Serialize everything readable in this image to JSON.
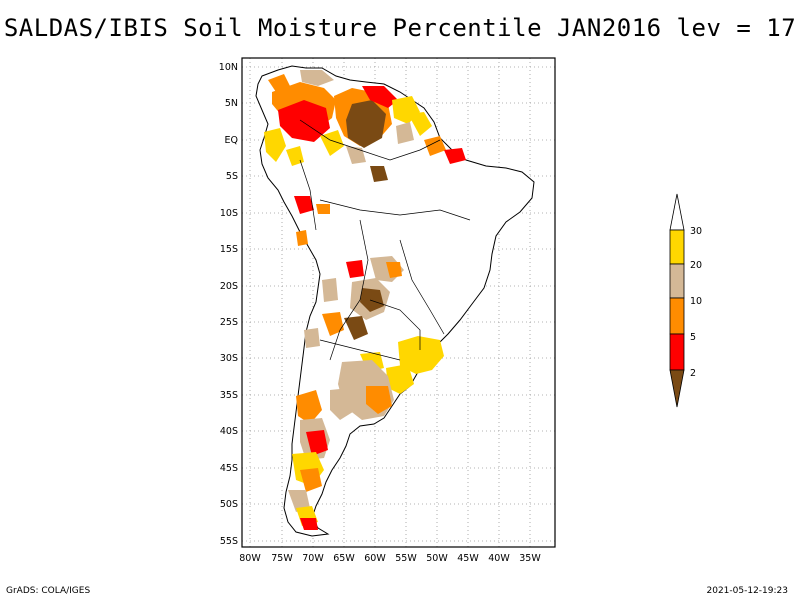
{
  "title": "SALDAS/IBIS Soil Moisture Percentile JAN2016 lev = 17",
  "axes": {
    "lat_labels": [
      "10N",
      "5N",
      "EQ",
      "5S",
      "10S",
      "15S",
      "20S",
      "25S",
      "30S",
      "35S",
      "40S",
      "45S",
      "50S",
      "55S"
    ],
    "lon_labels": [
      "80W",
      "75W",
      "70W",
      "65W",
      "60W",
      "55W",
      "50W",
      "45W",
      "40W",
      "35W"
    ]
  },
  "legend": {
    "colors": [
      "#7a4a14",
      "#ff0000",
      "#ff8c00",
      "#d4b896",
      "#ffd700",
      "#ffffff"
    ],
    "labels": [
      "2",
      "5",
      "10",
      "20",
      "30"
    ]
  },
  "footer": {
    "left": "GrADS: COLA/IGES",
    "right": "2021-05-12-19:23"
  }
}
